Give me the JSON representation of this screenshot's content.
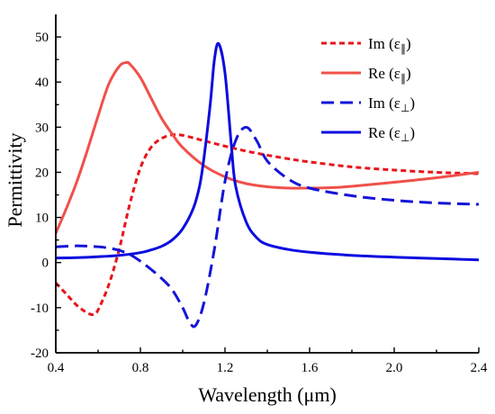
{
  "chart_data": {
    "type": "line",
    "title": "",
    "xlabel": "Wavelength (μm)",
    "ylabel": "Permittivity",
    "xlim": [
      0.4,
      2.4
    ],
    "ylim": [
      -20,
      55
    ],
    "xticks": [
      0.4,
      0.8,
      1.2,
      1.6,
      2.0,
      2.4
    ],
    "xtick_labels": [
      "0.4",
      "0.8",
      "1.2",
      "1.6",
      "2.0",
      "2.4"
    ],
    "yticks": [
      -20,
      -10,
      0,
      10,
      20,
      30,
      40,
      50
    ],
    "ytick_labels": [
      "-20",
      "-10",
      "0",
      "10",
      "20",
      "30",
      "40",
      "50"
    ],
    "grid": false,
    "legend_position": "top-right",
    "series": [
      {
        "name": "Im (ε∥)",
        "color": "#e8141b",
        "style": "dashed",
        "x": [
          0.4,
          0.45,
          0.5,
          0.55,
          0.58,
          0.6,
          0.65,
          0.7,
          0.75,
          0.8,
          0.85,
          0.9,
          0.95,
          1.0,
          1.1,
          1.2,
          1.3,
          1.4,
          1.5,
          1.6,
          1.8,
          2.0,
          2.2,
          2.4
        ],
        "y": [
          -4.5,
          -7,
          -9.5,
          -11.2,
          -11.5,
          -10.5,
          -5,
          3,
          13,
          21,
          25.5,
          27.5,
          28.3,
          28.2,
          27,
          25.8,
          24.7,
          23.8,
          23,
          22.3,
          21.2,
          20.5,
          20,
          19.7
        ]
      },
      {
        "name": "Re (ε∥)",
        "color": "#f0504a",
        "style": "solid",
        "x": [
          0.4,
          0.45,
          0.5,
          0.55,
          0.6,
          0.65,
          0.7,
          0.73,
          0.75,
          0.8,
          0.85,
          0.9,
          0.95,
          1.0,
          1.1,
          1.2,
          1.3,
          1.4,
          1.5,
          1.6,
          1.7,
          1.8,
          2.0,
          2.2,
          2.4
        ],
        "y": [
          6.5,
          12,
          18,
          25,
          32.5,
          39.5,
          43.5,
          44.3,
          44,
          41,
          36.5,
          32,
          28.5,
          25.5,
          21.5,
          19,
          17.5,
          16.8,
          16.5,
          16.5,
          16.6,
          16.9,
          17.8,
          18.8,
          20
        ]
      },
      {
        "name": "Im (ε⊥)",
        "color": "#1414d8",
        "style": "dashed",
        "x": [
          0.4,
          0.5,
          0.6,
          0.65,
          0.7,
          0.75,
          0.8,
          0.85,
          0.9,
          0.95,
          1.0,
          1.03,
          1.06,
          1.1,
          1.15,
          1.2,
          1.25,
          1.3,
          1.35,
          1.4,
          1.5,
          1.6,
          1.8,
          2.0,
          2.2,
          2.4
        ],
        "y": [
          3.5,
          3.7,
          3.5,
          3.2,
          2.7,
          1.8,
          0.3,
          -1.5,
          -3.5,
          -6,
          -10,
          -13,
          -14,
          -9,
          3,
          18,
          27,
          30,
          27,
          22.5,
          18.5,
          16.5,
          14.8,
          13.8,
          13.2,
          12.9
        ]
      },
      {
        "name": "Re (ε⊥)",
        "color": "#0c0ce0",
        "style": "solid",
        "x": [
          0.4,
          0.5,
          0.6,
          0.7,
          0.8,
          0.85,
          0.9,
          0.95,
          1.0,
          1.05,
          1.08,
          1.1,
          1.13,
          1.15,
          1.17,
          1.2,
          1.23,
          1.25,
          1.3,
          1.35,
          1.4,
          1.5,
          1.6,
          1.8,
          2.0,
          2.2,
          2.4
        ],
        "y": [
          1,
          1.1,
          1.3,
          1.6,
          2.2,
          2.8,
          3.6,
          5,
          7.5,
          12,
          17,
          23,
          35,
          45,
          48.5,
          42,
          26,
          17,
          9,
          5.5,
          4,
          2.9,
          2.3,
          1.6,
          1.2,
          0.9,
          0.6
        ]
      }
    ],
    "legend": [
      {
        "prefix": "Im (ε",
        "sub": "∥",
        "suffix": ")",
        "color": "#e8141b",
        "style": "dashed"
      },
      {
        "prefix": "Re (ε",
        "sub": "∥",
        "suffix": ")",
        "color": "#f0504a",
        "style": "solid"
      },
      {
        "prefix": "Im (ε",
        "sub": "⊥",
        "suffix": ")",
        "color": "#1414d8",
        "style": "dashed"
      },
      {
        "prefix": "Re (ε",
        "sub": "⊥",
        "suffix": ")",
        "color": "#0c0ce0",
        "style": "solid"
      }
    ]
  }
}
